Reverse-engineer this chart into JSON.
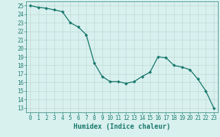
{
  "x": [
    0,
    1,
    2,
    3,
    4,
    5,
    6,
    7,
    8,
    9,
    10,
    11,
    12,
    13,
    14,
    15,
    16,
    17,
    18,
    19,
    20,
    21,
    22,
    23
  ],
  "y": [
    25,
    24.8,
    24.7,
    24.5,
    24.3,
    23.0,
    22.5,
    21.6,
    18.3,
    16.7,
    16.1,
    16.1,
    15.9,
    16.1,
    16.7,
    17.2,
    19.0,
    18.9,
    18.0,
    17.8,
    17.5,
    16.4,
    15.0,
    13.0
  ],
  "line_color": "#1a7a6e",
  "marker": "D",
  "marker_size": 2,
  "bg_color": "#d8f0ee",
  "grid_color": "#c0d8d4",
  "xlabel": "Humidex (Indice chaleur)",
  "xlabel_color": "#1a7a6e",
  "xlim": [
    -0.5,
    23.5
  ],
  "ylim": [
    12.5,
    25.5
  ],
  "yticks": [
    13,
    14,
    15,
    16,
    17,
    18,
    19,
    20,
    21,
    22,
    23,
    24,
    25
  ],
  "xticks": [
    0,
    1,
    2,
    3,
    4,
    5,
    6,
    7,
    8,
    9,
    10,
    11,
    12,
    13,
    14,
    15,
    16,
    17,
    18,
    19,
    20,
    21,
    22,
    23
  ],
  "tick_label_fontsize": 5.5,
  "xlabel_fontsize": 7,
  "line_width": 1.0
}
